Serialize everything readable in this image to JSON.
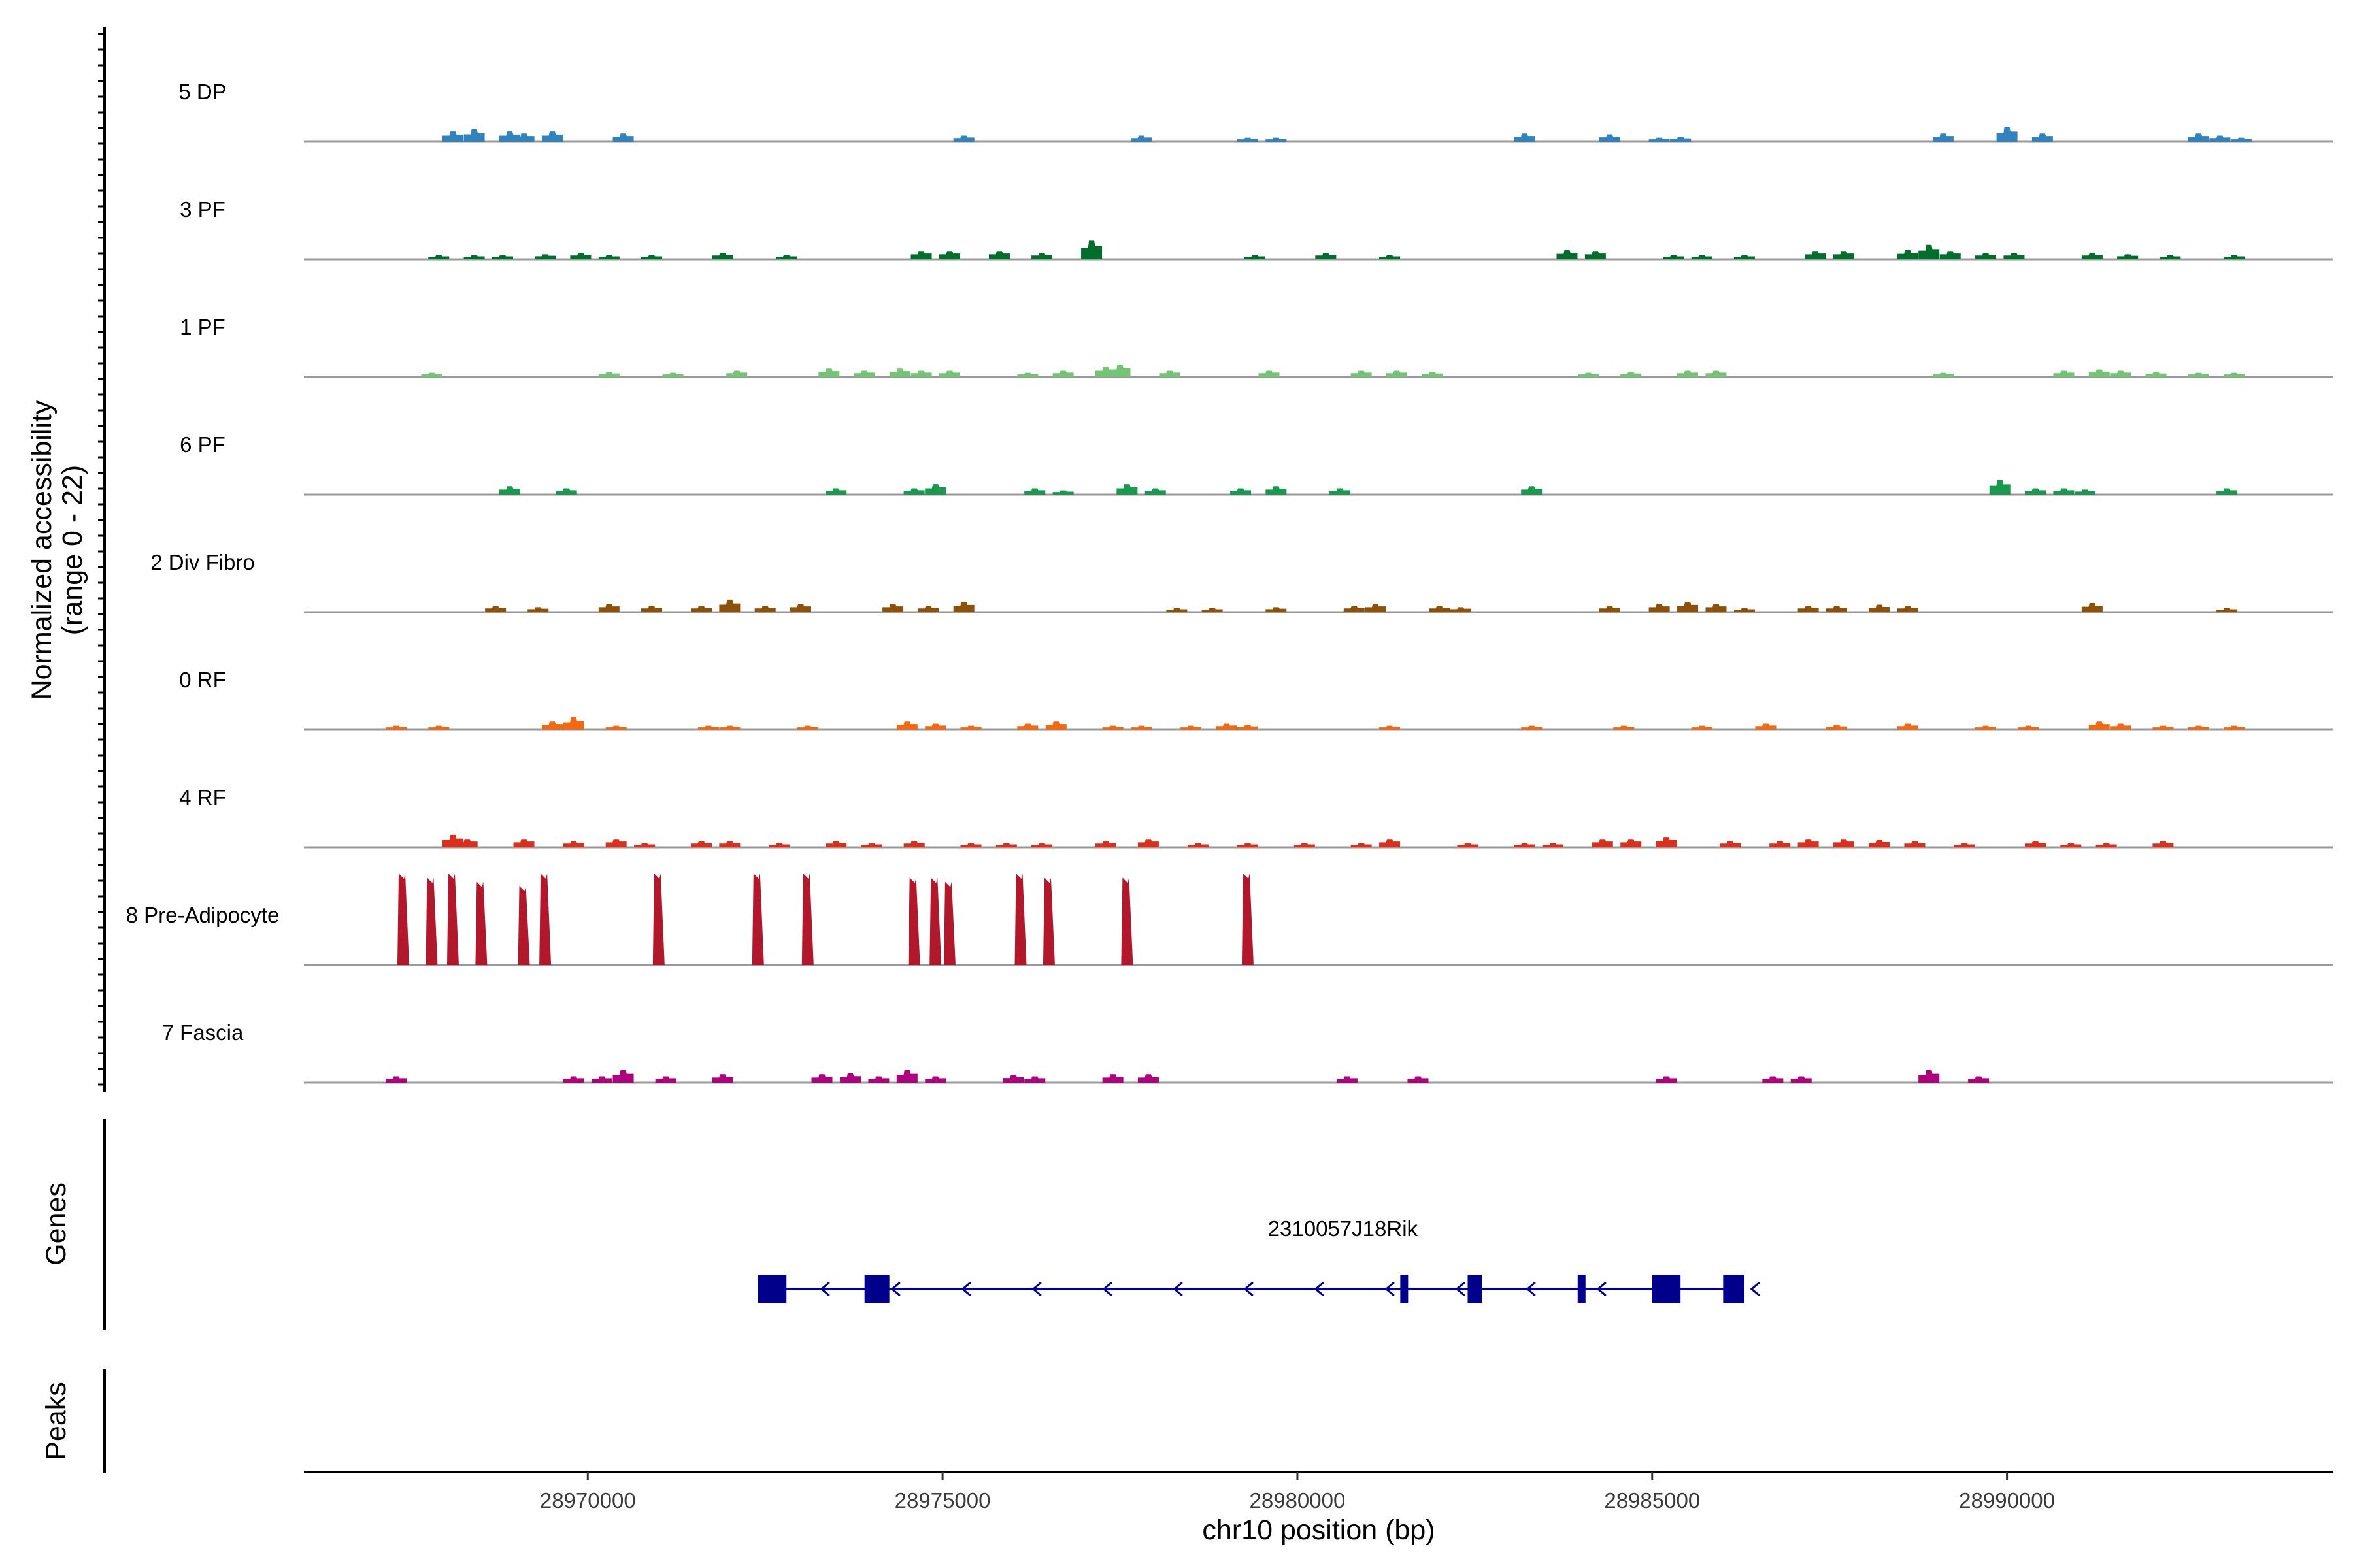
{
  "chart_data": {
    "type": "coverage",
    "region": {
      "chromosome": "chr10",
      "start": 28966000,
      "end": 28994600
    },
    "xlabel": "chr10 position (bp)",
    "x_ticks": [
      {
        "value": 28970000,
        "label": "28970000"
      },
      {
        "value": 28975000,
        "label": "28975000"
      },
      {
        "value": 28980000,
        "label": "28980000"
      },
      {
        "value": 28985000,
        "label": "28985000"
      },
      {
        "value": 28990000,
        "label": "28990000"
      }
    ],
    "ylabel_line1": "Normalized accessibility",
    "ylabel_line2": "(range 0 - 22)",
    "y_range": [
      0,
      22
    ],
    "tracks": [
      {
        "name": "5 DP",
        "color": "#3182bd",
        "peaks": [
          [
            28968100,
            2.5
          ],
          [
            28968400,
            3
          ],
          [
            28968900,
            2.5
          ],
          [
            28969100,
            2
          ],
          [
            28969500,
            2.5
          ],
          [
            28970500,
            2
          ],
          [
            28975300,
            1.5
          ],
          [
            28977800,
            1.5
          ],
          [
            28979300,
            1
          ],
          [
            28979700,
            1
          ],
          [
            28983200,
            2
          ],
          [
            28984400,
            1.8
          ],
          [
            28985100,
            1
          ],
          [
            28985400,
            1.2
          ],
          [
            28989100,
            2
          ],
          [
            28990000,
            3.5
          ],
          [
            28990500,
            2
          ],
          [
            28992700,
            2
          ],
          [
            28993000,
            1.5
          ],
          [
            28993300,
            1
          ]
        ]
      },
      {
        "name": "3 PF",
        "color": "#006d2c",
        "peaks": [
          [
            28967900,
            1
          ],
          [
            28968400,
            1
          ],
          [
            28968800,
            1
          ],
          [
            28969400,
            1.2
          ],
          [
            28969900,
            1.5
          ],
          [
            28970300,
            1
          ],
          [
            28970900,
            1
          ],
          [
            28971900,
            1.5
          ],
          [
            28972800,
            1
          ],
          [
            28974700,
            2
          ],
          [
            28975100,
            2
          ],
          [
            28975800,
            2
          ],
          [
            28976400,
            1.5
          ],
          [
            28977100,
            4.5
          ],
          [
            28979400,
            1
          ],
          [
            28980400,
            1.5
          ],
          [
            28981300,
            1
          ],
          [
            28983800,
            2.2
          ],
          [
            28984200,
            2
          ],
          [
            28985300,
            1
          ],
          [
            28985700,
            1
          ],
          [
            28986300,
            1
          ],
          [
            28987300,
            2
          ],
          [
            28987700,
            2
          ],
          [
            28988600,
            2.2
          ],
          [
            28988900,
            3.5
          ],
          [
            28989200,
            2
          ],
          [
            28989700,
            1.5
          ],
          [
            28990100,
            1.5
          ],
          [
            28991200,
            1.5
          ],
          [
            28991700,
            1.2
          ],
          [
            28992300,
            1
          ],
          [
            28993200,
            1
          ]
        ]
      },
      {
        "name": "1 PF",
        "color": "#74c476",
        "peaks": [
          [
            28967800,
            1
          ],
          [
            28970300,
            1.2
          ],
          [
            28971200,
            1
          ],
          [
            28972100,
            1.5
          ],
          [
            28973400,
            2
          ],
          [
            28973900,
            1.5
          ],
          [
            28974400,
            2
          ],
          [
            28974700,
            1.5
          ],
          [
            28975100,
            1.5
          ],
          [
            28976200,
            1
          ],
          [
            28976700,
            1.5
          ],
          [
            28977300,
            2.5
          ],
          [
            28977500,
            3
          ],
          [
            28978200,
            1.5
          ],
          [
            28979600,
            1.5
          ],
          [
            28980900,
            1.5
          ],
          [
            28981400,
            1.5
          ],
          [
            28981900,
            1.2
          ],
          [
            28984100,
            1
          ],
          [
            28984700,
            1.2
          ],
          [
            28985500,
            1.5
          ],
          [
            28985900,
            1.5
          ],
          [
            28989100,
            1
          ],
          [
            28990800,
            1.5
          ],
          [
            28991300,
            1.8
          ],
          [
            28991600,
            1.5
          ],
          [
            28992100,
            1.2
          ],
          [
            28992700,
            1
          ],
          [
            28993200,
            1
          ]
        ]
      },
      {
        "name": "6 PF",
        "color": "#1a9850",
        "peaks": [
          [
            28968900,
            2
          ],
          [
            28969700,
            1.5
          ],
          [
            28973500,
            1.5
          ],
          [
            28974600,
            1.5
          ],
          [
            28974900,
            2.5
          ],
          [
            28976300,
            1.5
          ],
          [
            28976700,
            1
          ],
          [
            28977600,
            2.5
          ],
          [
            28978000,
            1.5
          ],
          [
            28979200,
            1.5
          ],
          [
            28979700,
            2
          ],
          [
            28980600,
            1.5
          ],
          [
            28983300,
            2
          ],
          [
            28989900,
            3.5
          ],
          [
            28990400,
            1.5
          ],
          [
            28990800,
            1.5
          ],
          [
            28991100,
            1.2
          ],
          [
            28993100,
            1.5
          ]
        ]
      },
      {
        "name": "2 Div Fibro",
        "color": "#8c510a",
        "peaks": [
          [
            28968700,
            1.5
          ],
          [
            28969300,
            1.2
          ],
          [
            28970300,
            2
          ],
          [
            28970900,
            1.5
          ],
          [
            28971600,
            1.5
          ],
          [
            28972000,
            3
          ],
          [
            28972500,
            1.5
          ],
          [
            28973000,
            2
          ],
          [
            28974300,
            2
          ],
          [
            28974800,
            1.5
          ],
          [
            28975300,
            2.5
          ],
          [
            28978300,
            1
          ],
          [
            28978800,
            1
          ],
          [
            28979700,
            1.2
          ],
          [
            28980800,
            1.5
          ],
          [
            28981100,
            2
          ],
          [
            28982000,
            1.5
          ],
          [
            28982300,
            1.2
          ],
          [
            28984400,
            1.5
          ],
          [
            28985100,
            2
          ],
          [
            28985500,
            2.5
          ],
          [
            28985900,
            2
          ],
          [
            28986300,
            1
          ],
          [
            28987200,
            1.5
          ],
          [
            28987600,
            1.5
          ],
          [
            28988200,
            1.8
          ],
          [
            28988600,
            1.5
          ],
          [
            28991200,
            2.2
          ],
          [
            28993100,
            1
          ]
        ]
      },
      {
        "name": "0 RF",
        "color": "#f16913",
        "peaks": [
          [
            28967300,
            1
          ],
          [
            28967900,
            1
          ],
          [
            28969500,
            2
          ],
          [
            28969800,
            3
          ],
          [
            28970400,
            1
          ],
          [
            28971700,
            1
          ],
          [
            28972000,
            1
          ],
          [
            28973100,
            1
          ],
          [
            28974500,
            2
          ],
          [
            28974900,
            1.5
          ],
          [
            28975400,
            1
          ],
          [
            28976200,
            1.5
          ],
          [
            28976600,
            2
          ],
          [
            28977400,
            1
          ],
          [
            28977800,
            1
          ],
          [
            28978500,
            1
          ],
          [
            28979000,
            1.5
          ],
          [
            28979300,
            1.2
          ],
          [
            28981300,
            1
          ],
          [
            28983300,
            1
          ],
          [
            28984600,
            1
          ],
          [
            28985700,
            1
          ],
          [
            28986600,
            1.5
          ],
          [
            28987600,
            1.2
          ],
          [
            28988600,
            1.5
          ],
          [
            28989700,
            1
          ],
          [
            28990300,
            1
          ],
          [
            28991300,
            2
          ],
          [
            28991600,
            1.5
          ],
          [
            28992200,
            1
          ],
          [
            28992700,
            1
          ],
          [
            28993200,
            1
          ]
        ]
      },
      {
        "name": "4 RF",
        "color": "#d7301f",
        "peaks": [
          [
            28968100,
            3
          ],
          [
            28968300,
            2
          ],
          [
            28969100,
            2
          ],
          [
            28969800,
            1.5
          ],
          [
            28970400,
            2
          ],
          [
            28970800,
            1
          ],
          [
            28971600,
            1.5
          ],
          [
            28972000,
            1.5
          ],
          [
            28972700,
            1
          ],
          [
            28973500,
            1.5
          ],
          [
            28974000,
            1
          ],
          [
            28974600,
            1.5
          ],
          [
            28975400,
            1
          ],
          [
            28975900,
            1
          ],
          [
            28976400,
            1
          ],
          [
            28977300,
            1.5
          ],
          [
            28977900,
            2
          ],
          [
            28978600,
            1
          ],
          [
            28979300,
            1
          ],
          [
            28980100,
            1
          ],
          [
            28980900,
            1
          ],
          [
            28981300,
            2
          ],
          [
            28982400,
            1
          ],
          [
            28983200,
            1
          ],
          [
            28983600,
            1
          ],
          [
            28984300,
            2
          ],
          [
            28984700,
            2
          ],
          [
            28985200,
            2.5
          ],
          [
            28986100,
            1.5
          ],
          [
            28986800,
            1.5
          ],
          [
            28987200,
            2
          ],
          [
            28987700,
            2
          ],
          [
            28988200,
            1.8
          ],
          [
            28988700,
            1.5
          ],
          [
            28989400,
            1
          ],
          [
            28990400,
            1.5
          ],
          [
            28990900,
            1
          ],
          [
            28991400,
            1
          ],
          [
            28992200,
            1.5
          ]
        ]
      },
      {
        "name": "8 Pre-Adipocyte",
        "color": "#b2182b",
        "peaks": [
          [
            28967400,
            22
          ],
          [
            28967800,
            21
          ],
          [
            28968100,
            22
          ],
          [
            28968500,
            20
          ],
          [
            28969100,
            19
          ],
          [
            28969400,
            22
          ],
          [
            28971000,
            22
          ],
          [
            28972400,
            22
          ],
          [
            28973100,
            22
          ],
          [
            28974600,
            21
          ],
          [
            28974900,
            21
          ],
          [
            28975100,
            20
          ],
          [
            28976100,
            22
          ],
          [
            28976500,
            21
          ],
          [
            28977600,
            21
          ],
          [
            28979300,
            22
          ]
        ]
      },
      {
        "name": "7 Fascia",
        "color": "#ae017e",
        "peaks": [
          [
            28967300,
            1.5
          ],
          [
            28969800,
            1.5
          ],
          [
            28970200,
            1.5
          ],
          [
            28970500,
            3
          ],
          [
            28971100,
            1.5
          ],
          [
            28971900,
            2
          ],
          [
            28973300,
            2
          ],
          [
            28973700,
            2.2
          ],
          [
            28974100,
            1.5
          ],
          [
            28974500,
            3
          ],
          [
            28974900,
            1.5
          ],
          [
            28976000,
            1.8
          ],
          [
            28976300,
            1.5
          ],
          [
            28977400,
            2
          ],
          [
            28977900,
            2
          ],
          [
            28980700,
            1.5
          ],
          [
            28981700,
            1.5
          ],
          [
            28985200,
            1.5
          ],
          [
            28986700,
            1.5
          ],
          [
            28987100,
            1.5
          ],
          [
            28988900,
            3
          ],
          [
            28989600,
            1.5
          ]
        ]
      }
    ],
    "genes_label": "Genes",
    "peaks_label": "Peaks",
    "gene": {
      "name": "2310057J18Rik",
      "strand": "-",
      "start": 28972400,
      "end": 28986300,
      "exons": [
        [
          28972400,
          28972800
        ],
        [
          28973900,
          28974250
        ],
        [
          28981450,
          28981550
        ],
        [
          28982400,
          28982600
        ],
        [
          28983950,
          28984050
        ],
        [
          28985000,
          28985400
        ],
        [
          28986000,
          28986300
        ]
      ]
    }
  }
}
